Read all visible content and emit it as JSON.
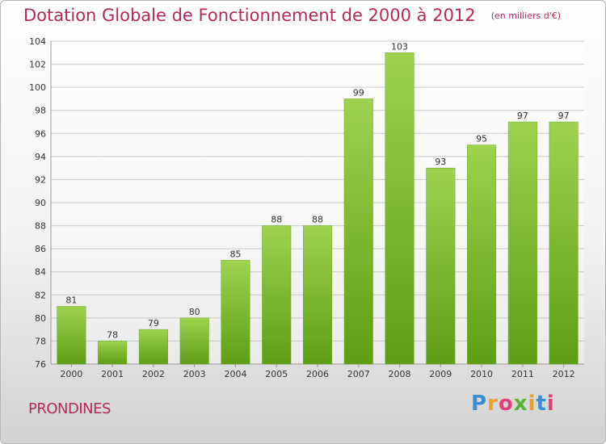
{
  "chart_data": {
    "type": "bar",
    "title": "Dotation Globale de Fonctionnement de 2000 à 2012",
    "subtitle": "(en milliers d'€)",
    "categories": [
      "2000",
      "2001",
      "2002",
      "2003",
      "2004",
      "2005",
      "2006",
      "2007",
      "2008",
      "2009",
      "2010",
      "2011",
      "2012"
    ],
    "values": [
      81,
      78,
      79,
      80,
      85,
      88,
      88,
      99,
      103,
      93,
      95,
      97,
      97
    ],
    "ylim": [
      76,
      104
    ],
    "yticks": [
      76,
      78,
      80,
      82,
      84,
      86,
      88,
      90,
      92,
      94,
      96,
      98,
      100,
      102,
      104
    ],
    "grid": true,
    "bar_color": "#7cbd2e",
    "legend": "none"
  },
  "commune": "PRONDINES",
  "logo": {
    "text": "Proxiti",
    "letters": [
      "P",
      "r",
      "o",
      "x",
      "i",
      "t",
      "i"
    ]
  },
  "colors": {
    "title": "#b22a5c",
    "bar_top": "#9ed24f",
    "bar_bottom": "#5e9e14",
    "grid": "#c8c8c8"
  }
}
